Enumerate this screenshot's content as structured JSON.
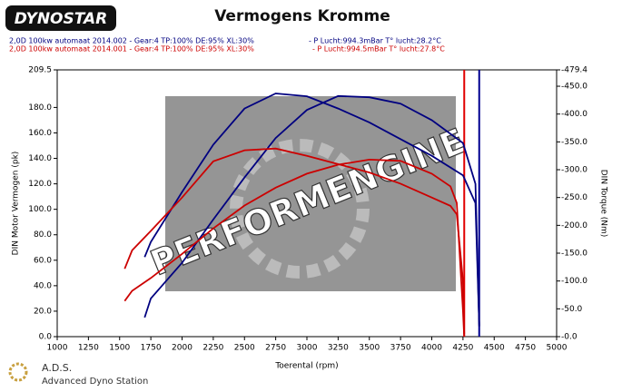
{
  "chart_data": {
    "type": "line",
    "logo": "DYNOSTAR",
    "title": "Vermogens Kromme",
    "runs": [
      {
        "name": "2,0D 100kw automaat 2014.002 - Gear:4 TP:100% DE:95% XL:30%",
        "conditions": "- P Lucht:994.3mBar T° lucht:28.2°C",
        "color": "#000080"
      },
      {
        "name": "2,0D 100kw automaat 2014.001 - Gear:4 TP:100% DE:95% XL:30%",
        "conditions": "- P Lucht:994.5mBar T° lucht:27.8°C",
        "color": "#cc0000"
      }
    ],
    "x_label": "Toerental (rpm)",
    "y_label": "DIN Motor Vermogen (pk)",
    "y2_label": "DIN Torque (Nm)",
    "xlim": [
      1000,
      5000
    ],
    "xticks": [
      1000,
      1250,
      1500,
      1750,
      2000,
      2250,
      2500,
      2750,
      3000,
      3250,
      3500,
      3750,
      4000,
      4250,
      4500,
      4750,
      5000
    ],
    "ylim": [
      0,
      209.5
    ],
    "yticks": [
      {
        "value": 0,
        "label": "0.0"
      },
      {
        "value": 20,
        "label": "20.0"
      },
      {
        "value": 40,
        "label": "40.0"
      },
      {
        "value": 60,
        "label": "60.0"
      },
      {
        "value": 80,
        "label": "80.0"
      },
      {
        "value": 100,
        "label": "100.0"
      },
      {
        "value": 120,
        "label": "120.0"
      },
      {
        "value": 140,
        "label": "140.0"
      },
      {
        "value": 160,
        "label": "160.0"
      },
      {
        "value": 180,
        "label": "180.0"
      },
      {
        "value": 209.5,
        "label": "209.5"
      }
    ],
    "y2lim": [
      0,
      479.4
    ],
    "y2ticks": [
      {
        "value": 0,
        "label": "-0.0"
      },
      {
        "value": 50,
        "label": "-50.0"
      },
      {
        "value": 100,
        "label": "-100.0"
      },
      {
        "value": 150,
        "label": "-150.0"
      },
      {
        "value": 200,
        "label": "-200.0"
      },
      {
        "value": 250,
        "label": "-250.0"
      },
      {
        "value": 300,
        "label": "-300.0"
      },
      {
        "value": 350,
        "label": "-350.0"
      },
      {
        "value": 400,
        "label": "-400.0"
      },
      {
        "value": 450,
        "label": "-450.0"
      },
      {
        "value": 479.4,
        "label": "-479.4"
      }
    ],
    "series": [
      {
        "color": "#000080",
        "axis": "y",
        "x": [
          1700,
          1750,
          2000,
          2250,
          2500,
          2750,
          3000,
          3250,
          3500,
          3750,
          4000,
          4250,
          4350,
          4380
        ],
        "values": [
          15,
          30,
          58,
          92,
          125,
          156,
          178,
          189,
          188,
          183,
          170,
          152,
          120,
          8
        ]
      },
      {
        "color": "#000080",
        "axis": "y2",
        "x": [
          1700,
          1750,
          2000,
          2250,
          2500,
          2750,
          3000,
          3250,
          3500,
          3750,
          4000,
          4250,
          4350,
          4380
        ],
        "values": [
          143,
          170,
          260,
          345,
          410,
          437,
          432,
          410,
          385,
          355,
          325,
          290,
          240,
          20
        ]
      },
      {
        "color": "#cc0000",
        "axis": "y",
        "x": [
          1540,
          1600,
          1750,
          2000,
          2250,
          2500,
          2750,
          3000,
          3250,
          3500,
          3750,
          4000,
          4150,
          4200,
          4250,
          4260
        ],
        "values": [
          28,
          36,
          46,
          65,
          85,
          103,
          117,
          128,
          135,
          139,
          138,
          128,
          118,
          105,
          20,
          0
        ]
      },
      {
        "color": "#cc0000",
        "axis": "y2",
        "x": [
          1540,
          1600,
          1750,
          2000,
          2250,
          2500,
          2750,
          3000,
          3250,
          3500,
          3750,
          4000,
          4150,
          4200,
          4250,
          4260
        ],
        "values": [
          122,
          155,
          190,
          250,
          315,
          335,
          338,
          325,
          310,
          295,
          275,
          250,
          235,
          220,
          100,
          5
        ]
      }
    ],
    "vlines": [
      {
        "x": 4260,
        "color": "#e00000"
      },
      {
        "x": 4380,
        "color": "#000090"
      }
    ],
    "watermark": "PERFORMENGINE",
    "footer_title": "A.D.S.",
    "footer_subtitle": "Advanced Dyno Station"
  }
}
